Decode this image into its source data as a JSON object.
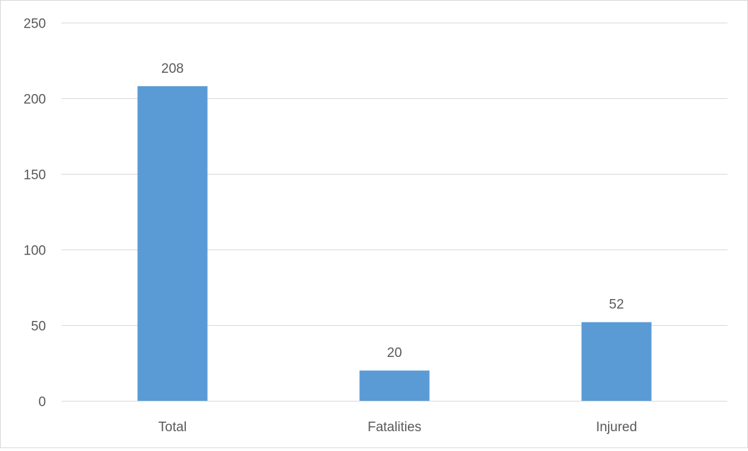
{
  "chart_data": {
    "type": "bar",
    "title": "",
    "xlabel": "",
    "ylabel": "",
    "categories": [
      "Total",
      "Fatalities",
      "Injured"
    ],
    "values": [
      208,
      20,
      52
    ],
    "data_labels": [
      "208",
      "20",
      "52"
    ],
    "ylim": [
      0,
      250
    ],
    "yticks": [
      0,
      50,
      100,
      150,
      200,
      250
    ],
    "ytick_labels": [
      "0",
      "50",
      "100",
      "150",
      "200",
      "250"
    ],
    "grid": true,
    "legend": "none",
    "colors": {
      "bar": "#5b9bd5",
      "grid": "#d9d9d9",
      "text": "#595959"
    }
  }
}
